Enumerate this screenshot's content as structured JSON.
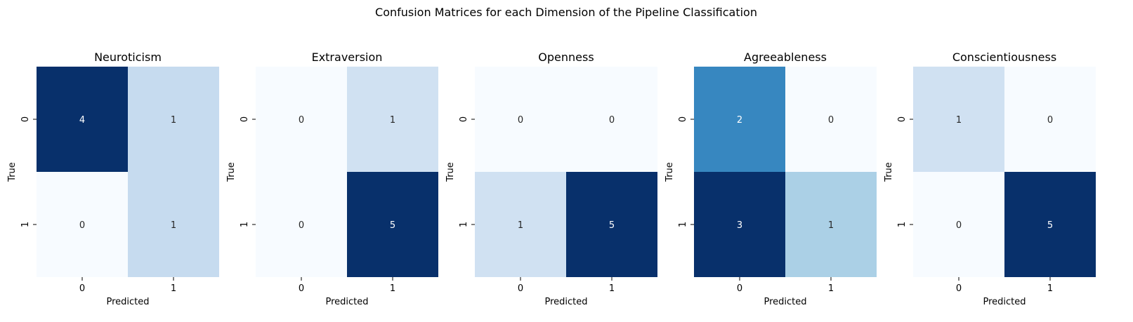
{
  "figure_title": "Confusion Matrices for each Dimension of the Pipeline Classification",
  "chart_data": [
    {
      "type": "heatmap",
      "title": "Neuroticism",
      "xlabel": "Predicted",
      "ylabel": "True",
      "x_ticks": [
        "0",
        "1"
      ],
      "y_ticks": [
        "0",
        "1"
      ],
      "values": [
        [
          4,
          1
        ],
        [
          0,
          1
        ]
      ]
    },
    {
      "type": "heatmap",
      "title": "Extraversion",
      "xlabel": "Predicted",
      "ylabel": "True",
      "x_ticks": [
        "0",
        "1"
      ],
      "y_ticks": [
        "0",
        "1"
      ],
      "values": [
        [
          0,
          1
        ],
        [
          0,
          5
        ]
      ]
    },
    {
      "type": "heatmap",
      "title": "Openness",
      "xlabel": "Predicted",
      "ylabel": "True",
      "x_ticks": [
        "0",
        "1"
      ],
      "y_ticks": [
        "0",
        "1"
      ],
      "values": [
        [
          0,
          0
        ],
        [
          1,
          5
        ]
      ]
    },
    {
      "type": "heatmap",
      "title": "Agreeableness",
      "xlabel": "Predicted",
      "ylabel": "True",
      "x_ticks": [
        "0",
        "1"
      ],
      "y_ticks": [
        "0",
        "1"
      ],
      "values": [
        [
          2,
          0
        ],
        [
          3,
          1
        ]
      ]
    },
    {
      "type": "heatmap",
      "title": "Conscientiousness",
      "xlabel": "Predicted",
      "ylabel": "True",
      "x_ticks": [
        "0",
        "1"
      ],
      "y_ticks": [
        "0",
        "1"
      ],
      "values": [
        [
          1,
          0
        ],
        [
          0,
          5
        ]
      ]
    }
  ],
  "colormap": "Blues",
  "colormap_stops": [
    "#f7fbff",
    "#deebf7",
    "#c6dbef",
    "#9ecae1",
    "#6baed6",
    "#4292c6",
    "#2171b5",
    "#08519c",
    "#08306b"
  ]
}
